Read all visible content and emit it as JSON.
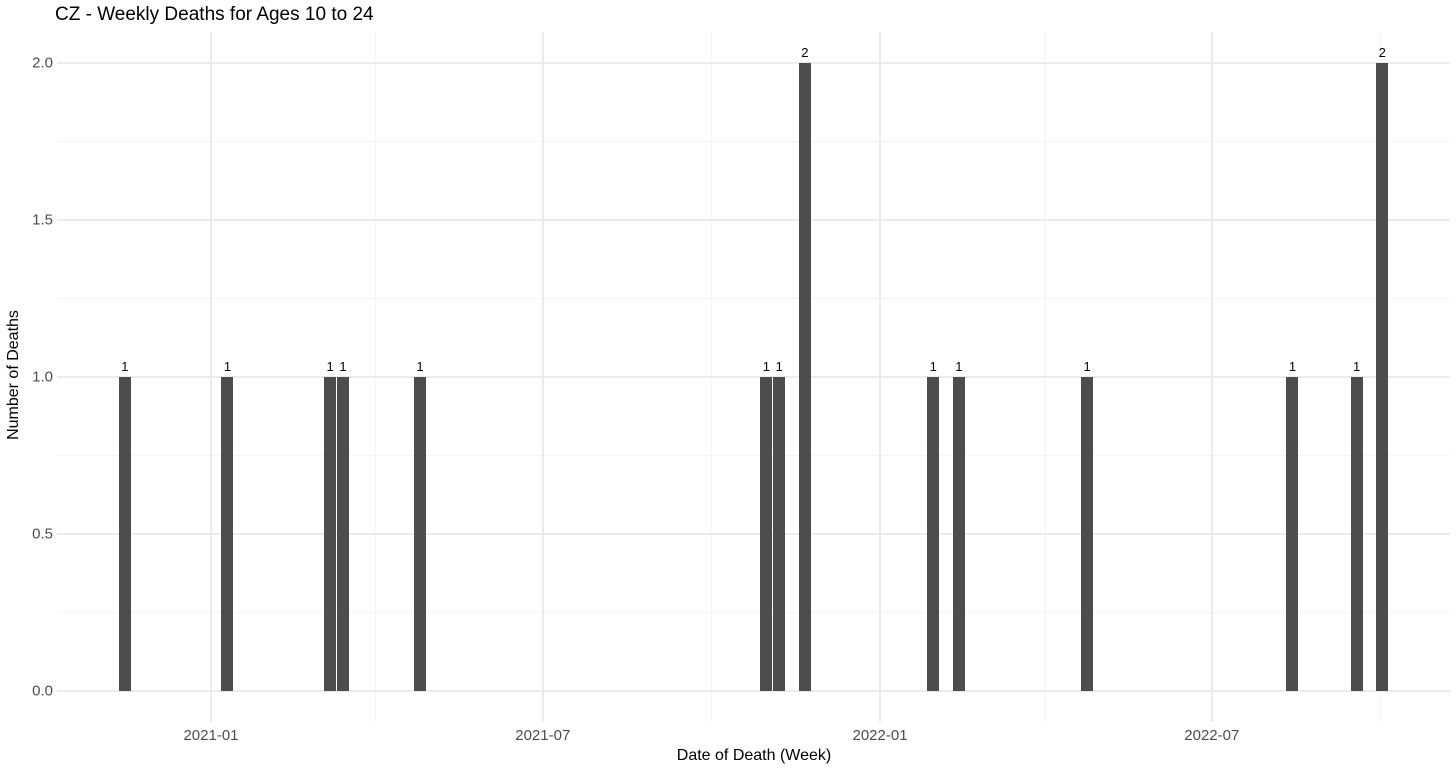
{
  "chart_data": {
    "type": "bar",
    "title": "CZ - Weekly Deaths for Ages 10 to 24",
    "xlabel": "Date of Death (Week)",
    "ylabel": "Number of Deaths",
    "x": [
      "2020-11-15",
      "2021-01-10",
      "2021-03-07",
      "2021-03-14",
      "2021-04-25",
      "2021-10-31",
      "2021-11-07",
      "2021-11-21",
      "2022-01-30",
      "2022-02-13",
      "2022-04-24",
      "2022-08-14",
      "2022-09-18",
      "2022-10-02"
    ],
    "values": [
      1,
      1,
      1,
      1,
      1,
      1,
      1,
      2,
      1,
      1,
      1,
      1,
      1,
      2
    ],
    "bar_labels": [
      "1",
      "1",
      "1",
      "1",
      "1",
      "1",
      "1",
      "2",
      "1",
      "1",
      "1",
      "1",
      "1",
      "2"
    ],
    "x_major_ticks": [
      "2021-01-01",
      "2021-07-01",
      "2022-01-01",
      "2022-07-01"
    ],
    "x_tick_labels": [
      "2021-01",
      "2021-07",
      "2022-01",
      "2022-07"
    ],
    "x_minor_ticks": [
      "2021-04-01",
      "2021-10-01",
      "2022-04-01",
      "2022-10-01"
    ],
    "y_ticks": [
      0.0,
      0.5,
      1.0,
      1.5,
      2.0
    ],
    "y_tick_labels": [
      "0.0",
      "0.5",
      "1.0",
      "1.5",
      "2.0"
    ],
    "y_minor_ticks": [
      0.25,
      0.75,
      1.25,
      1.75
    ],
    "ylim": [
      -0.1,
      2.1
    ],
    "grid": "major+minor",
    "legend": "none",
    "colors": {
      "bar": "#4d4d4d",
      "grid_major": "#ebebeb",
      "grid_minor": "#f4f4f4",
      "tick_text": "#4d4d4d",
      "title_text": "#000000",
      "background": "#ffffff"
    }
  }
}
